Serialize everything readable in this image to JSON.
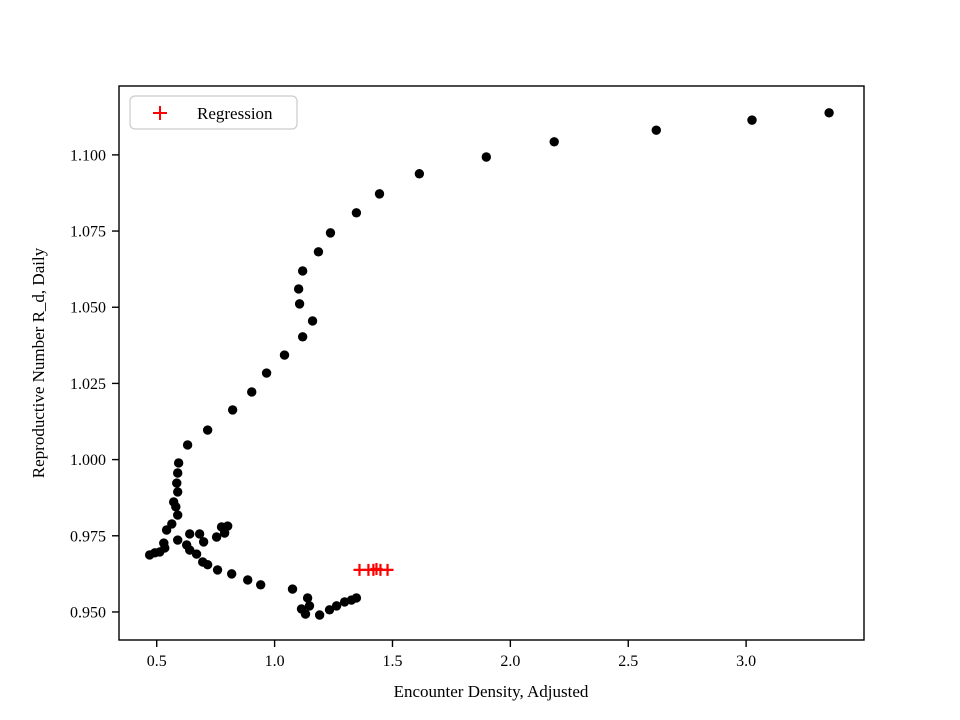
{
  "chart_data": {
    "type": "scatter",
    "title": "",
    "xlabel": "Encounter Density, Adjusted",
    "ylabel": "Reproductive Number R_d, Daily",
    "xlim": [
      0.34,
      3.5
    ],
    "ylim": [
      0.9408,
      1.1226
    ],
    "x_ticks": [
      0.5,
      1.0,
      1.5,
      2.0,
      2.5,
      3.0
    ],
    "x_tick_labels": [
      "0.5",
      "1.0",
      "1.5",
      "2.0",
      "2.5",
      "3.0"
    ],
    "y_ticks": [
      0.95,
      0.975,
      1.0,
      1.025,
      1.05,
      1.075,
      1.1
    ],
    "y_tick_labels": [
      "0.950",
      "0.975",
      "1.000",
      "1.025",
      "1.050",
      "1.075",
      "1.100"
    ],
    "grid": false,
    "legend": {
      "label": "Regression",
      "position": "upper left"
    },
    "colors": {
      "points": "#000000",
      "regression": "#ff0000",
      "axis": "#000000",
      "legend_border": "#cccccc",
      "background": "#ffffff"
    },
    "series": [
      {
        "name": "",
        "marker": "circle",
        "color": "#000000",
        "points": [
          [
            3.352,
            1.1138
          ],
          [
            3.025,
            1.1114
          ],
          [
            2.619,
            1.1081
          ],
          [
            2.186,
            1.1043
          ],
          [
            1.898,
            1.0993
          ],
          [
            1.614,
            1.0938
          ],
          [
            1.445,
            1.0872
          ],
          [
            1.347,
            1.081
          ],
          [
            1.237,
            1.0744
          ],
          [
            1.186,
            1.0682
          ],
          [
            1.119,
            1.0619
          ],
          [
            1.102,
            1.056
          ],
          [
            1.106,
            1.0511
          ],
          [
            1.161,
            1.0455
          ],
          [
            1.119,
            1.0403
          ],
          [
            1.042,
            1.0343
          ],
          [
            0.966,
            1.0284
          ],
          [
            0.903,
            1.0222
          ],
          [
            0.822,
            1.0163
          ],
          [
            0.716,
            1.0097
          ],
          [
            0.631,
            1.0048
          ],
          [
            0.593,
            0.9989
          ],
          [
            0.589,
            0.9956
          ],
          [
            0.585,
            0.9923
          ],
          [
            0.589,
            0.9894
          ],
          [
            0.572,
            0.9861
          ],
          [
            0.581,
            0.9845
          ],
          [
            0.589,
            0.9818
          ],
          [
            0.564,
            0.9789
          ],
          [
            0.542,
            0.9769
          ],
          [
            0.47,
            0.9687
          ],
          [
            0.492,
            0.9694
          ],
          [
            0.513,
            0.9697
          ],
          [
            0.534,
            0.971
          ],
          [
            0.53,
            0.9726
          ],
          [
            0.589,
            0.9736
          ],
          [
            0.627,
            0.972
          ],
          [
            0.64,
            0.9703
          ],
          [
            0.669,
            0.969
          ],
          [
            0.64,
            0.9756
          ],
          [
            0.682,
            0.9756
          ],
          [
            0.699,
            0.973
          ],
          [
            0.754,
            0.9746
          ],
          [
            0.775,
            0.9779
          ],
          [
            0.801,
            0.9782
          ],
          [
            0.788,
            0.9759
          ],
          [
            0.695,
            0.9664
          ],
          [
            0.716,
            0.9655
          ],
          [
            0.758,
            0.9638
          ],
          [
            0.818,
            0.9625
          ],
          [
            0.886,
            0.9605
          ],
          [
            0.941,
            0.9589
          ],
          [
            1.076,
            0.9575
          ],
          [
            1.14,
            0.9546
          ],
          [
            1.114,
            0.951
          ],
          [
            1.148,
            0.952
          ],
          [
            1.131,
            0.9493
          ],
          [
            1.191,
            0.949
          ],
          [
            1.233,
            0.9507
          ],
          [
            1.263,
            0.952
          ],
          [
            1.297,
            0.9533
          ],
          [
            1.326,
            0.9539
          ],
          [
            1.347,
            0.9546
          ]
        ]
      },
      {
        "name": "Regression",
        "marker": "plus",
        "color": "#ff0000",
        "points": [
          [
            1.36,
            0.9638
          ],
          [
            1.398,
            0.9638
          ],
          [
            1.419,
            0.9638
          ],
          [
            1.432,
            0.9641
          ],
          [
            1.449,
            0.9638
          ],
          [
            1.479,
            0.9638
          ]
        ]
      }
    ]
  }
}
